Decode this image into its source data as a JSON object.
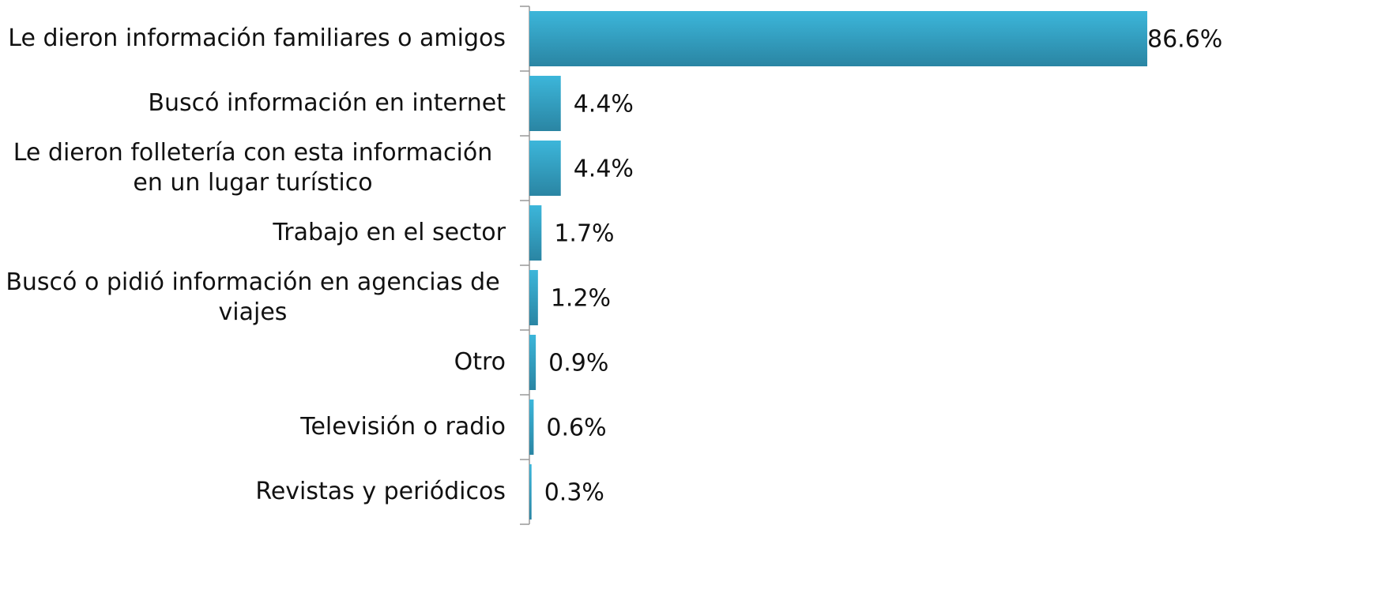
{
  "chart_data": {
    "type": "bar",
    "orientation": "horizontal",
    "categories": [
      "Le dieron información familiares o amigos",
      "Buscó información en internet",
      "Le dieron folletería con esta información en un lugar turístico",
      "Trabajo en el sector",
      "Buscó o pidió información en agencias de viajes",
      "Otro",
      "Televisión o radio",
      "Revistas y periódicos"
    ],
    "values": [
      86.6,
      4.4,
      4.4,
      1.7,
      1.2,
      0.9,
      0.6,
      0.3
    ],
    "value_labels": [
      "86.6%",
      "4.4%",
      "4.4%",
      "1.7%",
      "1.2%",
      "0.9%",
      "0.6%",
      "0.3%"
    ],
    "color": "#33a9cc",
    "xlim": [
      0,
      100
    ]
  }
}
